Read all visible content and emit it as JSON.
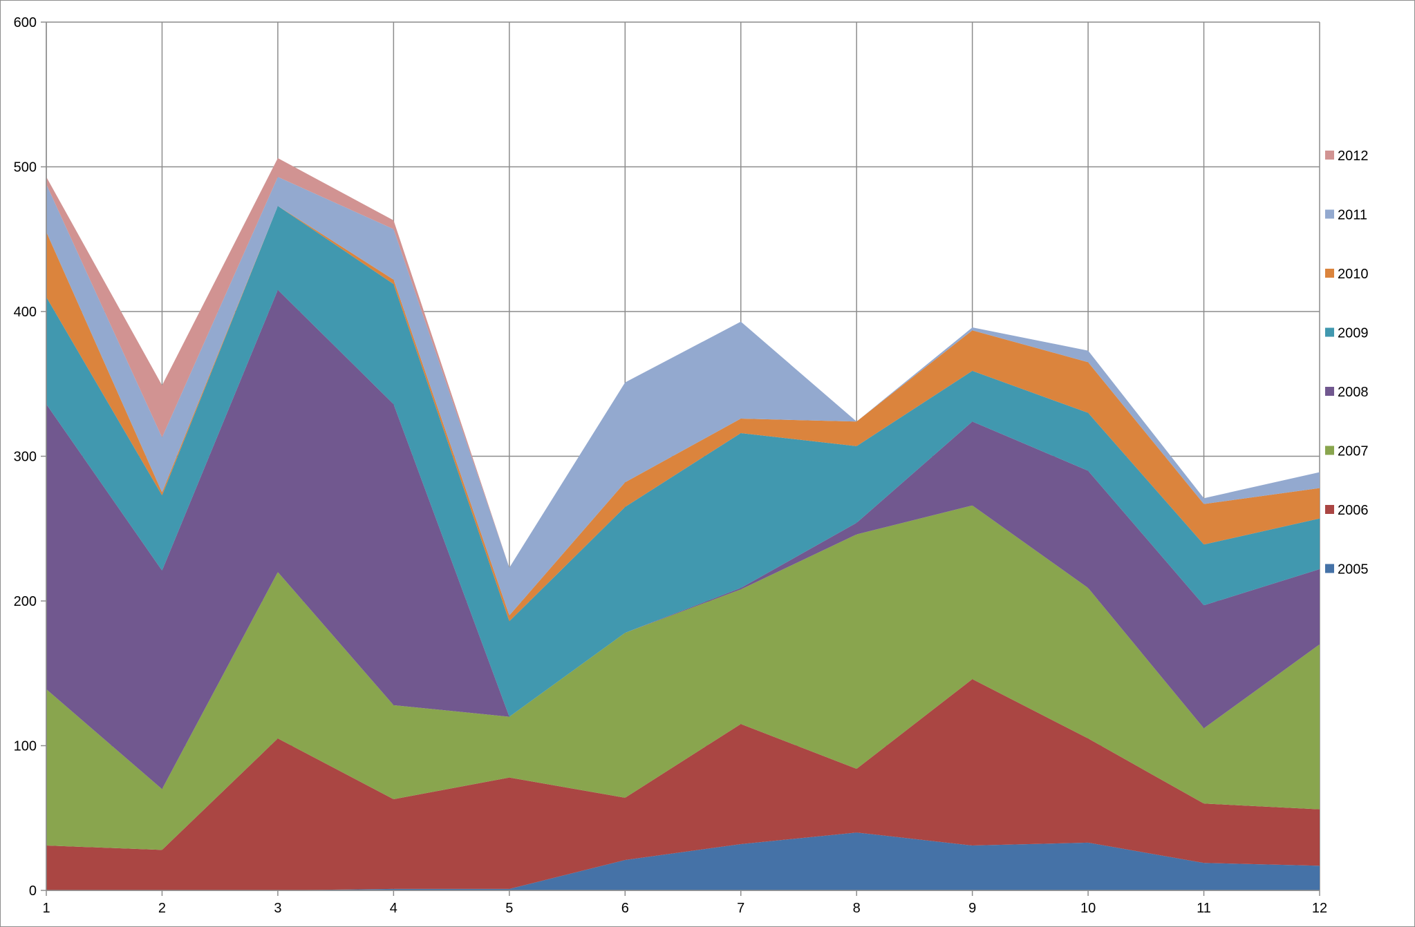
{
  "chart_data": {
    "type": "area",
    "stacked": true,
    "title": "",
    "xlabel": "",
    "ylabel": "",
    "x": [
      "1",
      "2",
      "3",
      "4",
      "5",
      "6",
      "7",
      "8",
      "9",
      "10",
      "11",
      "12"
    ],
    "ylim": [
      0,
      600
    ],
    "yticks": [
      "0",
      "100",
      "200",
      "300",
      "400",
      "500",
      "600"
    ],
    "grid": true,
    "legend_position": "right",
    "series": [
      {
        "name": "2005",
        "color": "#4572A7",
        "values": [
          0,
          0,
          0,
          1,
          1,
          21,
          32,
          40,
          31,
          33,
          19,
          17
        ]
      },
      {
        "name": "2006",
        "color": "#AA4643",
        "values": [
          31,
          28,
          105,
          62,
          77,
          43,
          83,
          44,
          115,
          72,
          41,
          39
        ]
      },
      {
        "name": "2007",
        "color": "#89A54E",
        "values": [
          108,
          42,
          115,
          65,
          42,
          114,
          93,
          162,
          120,
          104,
          52,
          114
        ]
      },
      {
        "name": "2008",
        "color": "#71588F",
        "values": [
          197,
          151,
          195,
          208,
          0,
          0,
          1,
          8,
          58,
          81,
          85,
          52
        ]
      },
      {
        "name": "2009",
        "color": "#4198AF",
        "values": [
          74,
          52,
          58,
          83,
          66,
          87,
          107,
          53,
          35,
          40,
          42,
          35
        ]
      },
      {
        "name": "2010",
        "color": "#DB843D",
        "values": [
          45,
          2,
          0,
          3,
          4,
          17,
          10,
          17,
          28,
          35,
          28,
          21
        ]
      },
      {
        "name": "2011",
        "color": "#93A9CF",
        "values": [
          33,
          38,
          20,
          35,
          33,
          69,
          67,
          0,
          2,
          8,
          4,
          11
        ]
      },
      {
        "name": "2012",
        "color": "#D19392",
        "values": [
          5,
          36,
          13,
          6,
          0,
          0,
          0,
          0,
          0,
          0,
          0,
          0
        ]
      }
    ]
  }
}
